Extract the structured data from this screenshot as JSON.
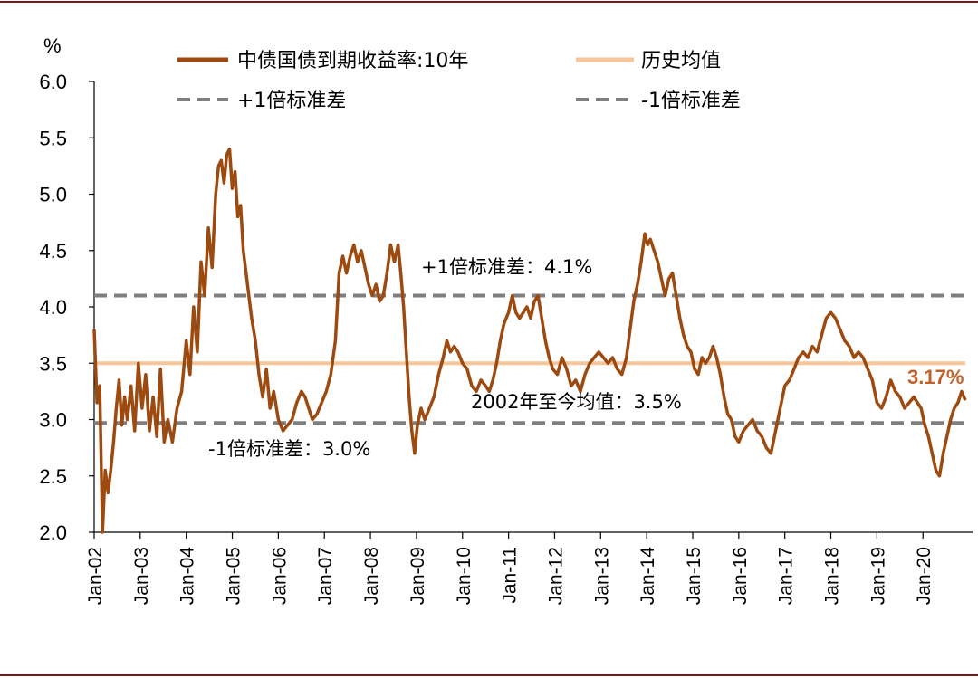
{
  "colors": {
    "frame": "#7a1a1a",
    "yield_line": "#9c4a10",
    "mean_line": "#f6c59a",
    "std_line": "#7f7f7f",
    "last_value": "#c0622a",
    "axis": "#000000"
  },
  "chart_data": {
    "type": "line",
    "ylabel": "%",
    "ylim": [
      2.0,
      6.0
    ],
    "yticks": [
      "2.0",
      "2.5",
      "3.0",
      "3.5",
      "4.0",
      "4.5",
      "5.0",
      "5.5",
      "6.0"
    ],
    "xlim": [
      2002.0,
      2020.92
    ],
    "xticks": [
      "Jan-02",
      "Jan-03",
      "Jan-04",
      "Jan-05",
      "Jan-06",
      "Jan-07",
      "Jan-08",
      "Jan-09",
      "Jan-10",
      "Jan-11",
      "Jan-12",
      "Jan-13",
      "Jan-14",
      "Jan-15",
      "Jan-16",
      "Jan-17",
      "Jan-18",
      "Jan-19",
      "Jan-20"
    ],
    "xtick_years": [
      2002,
      2003,
      2004,
      2005,
      2006,
      2007,
      2008,
      2009,
      2010,
      2011,
      2012,
      2013,
      2014,
      2015,
      2016,
      2017,
      2018,
      2019,
      2020
    ],
    "legend": {
      "position": "top",
      "entries": [
        "中债国债到期收益率:10年",
        "历史均值",
        "+1倍标准差",
        "-1倍标准差"
      ]
    },
    "series": [
      {
        "name": "中债国债到期收益率:10年",
        "style": "solid",
        "points": [
          [
            2002.0,
            3.8
          ],
          [
            2002.06,
            3.15
          ],
          [
            2002.12,
            3.3
          ],
          [
            2002.18,
            2.0
          ],
          [
            2002.24,
            2.55
          ],
          [
            2002.3,
            2.35
          ],
          [
            2002.36,
            2.55
          ],
          [
            2002.42,
            2.8
          ],
          [
            2002.48,
            3.1
          ],
          [
            2002.54,
            3.35
          ],
          [
            2002.6,
            2.95
          ],
          [
            2002.66,
            3.2
          ],
          [
            2002.72,
            3.0
          ],
          [
            2002.8,
            3.3
          ],
          [
            2002.88,
            2.9
          ],
          [
            2002.96,
            3.5
          ],
          [
            2003.04,
            3.1
          ],
          [
            2003.12,
            3.4
          ],
          [
            2003.2,
            2.9
          ],
          [
            2003.28,
            3.2
          ],
          [
            2003.36,
            2.85
          ],
          [
            2003.44,
            3.45
          ],
          [
            2003.52,
            2.8
          ],
          [
            2003.6,
            3.0
          ],
          [
            2003.7,
            2.8
          ],
          [
            2003.8,
            3.1
          ],
          [
            2003.9,
            3.25
          ],
          [
            2004.0,
            3.7
          ],
          [
            2004.08,
            3.4
          ],
          [
            2004.16,
            4.0
          ],
          [
            2004.24,
            3.6
          ],
          [
            2004.32,
            4.4
          ],
          [
            2004.4,
            4.1
          ],
          [
            2004.48,
            4.7
          ],
          [
            2004.56,
            4.35
          ],
          [
            2004.64,
            5.0
          ],
          [
            2004.7,
            5.25
          ],
          [
            2004.76,
            5.3
          ],
          [
            2004.82,
            5.1
          ],
          [
            2004.88,
            5.35
          ],
          [
            2004.94,
            5.4
          ],
          [
            2005.0,
            5.05
          ],
          [
            2005.06,
            5.2
          ],
          [
            2005.12,
            4.8
          ],
          [
            2005.18,
            4.9
          ],
          [
            2005.24,
            4.5
          ],
          [
            2005.3,
            4.3
          ],
          [
            2005.36,
            4.1
          ],
          [
            2005.42,
            3.9
          ],
          [
            2005.5,
            3.7
          ],
          [
            2005.58,
            3.4
          ],
          [
            2005.66,
            3.2
          ],
          [
            2005.74,
            3.45
          ],
          [
            2005.82,
            3.1
          ],
          [
            2005.9,
            3.25
          ],
          [
            2006.0,
            3.0
          ],
          [
            2006.1,
            2.9
          ],
          [
            2006.2,
            2.95
          ],
          [
            2006.3,
            3.0
          ],
          [
            2006.4,
            3.15
          ],
          [
            2006.5,
            3.25
          ],
          [
            2006.58,
            3.2
          ],
          [
            2006.66,
            3.1
          ],
          [
            2006.74,
            3.0
          ],
          [
            2006.84,
            3.05
          ],
          [
            2006.94,
            3.15
          ],
          [
            2007.04,
            3.25
          ],
          [
            2007.14,
            3.4
          ],
          [
            2007.24,
            3.7
          ],
          [
            2007.32,
            4.3
          ],
          [
            2007.4,
            4.45
          ],
          [
            2007.48,
            4.3
          ],
          [
            2007.56,
            4.45
          ],
          [
            2007.64,
            4.55
          ],
          [
            2007.72,
            4.4
          ],
          [
            2007.8,
            4.5
          ],
          [
            2007.88,
            4.35
          ],
          [
            2007.96,
            4.2
          ],
          [
            2008.04,
            4.1
          ],
          [
            2008.12,
            4.2
          ],
          [
            2008.2,
            4.05
          ],
          [
            2008.28,
            4.1
          ],
          [
            2008.36,
            4.3
          ],
          [
            2008.44,
            4.55
          ],
          [
            2008.52,
            4.4
          ],
          [
            2008.6,
            4.55
          ],
          [
            2008.66,
            4.3
          ],
          [
            2008.72,
            4.0
          ],
          [
            2008.78,
            3.6
          ],
          [
            2008.84,
            3.2
          ],
          [
            2008.9,
            2.9
          ],
          [
            2008.96,
            2.7
          ],
          [
            2009.02,
            2.95
          ],
          [
            2009.1,
            3.1
          ],
          [
            2009.18,
            3.0
          ],
          [
            2009.28,
            3.1
          ],
          [
            2009.38,
            3.2
          ],
          [
            2009.48,
            3.4
          ],
          [
            2009.58,
            3.55
          ],
          [
            2009.66,
            3.7
          ],
          [
            2009.74,
            3.6
          ],
          [
            2009.82,
            3.65
          ],
          [
            2009.9,
            3.6
          ],
          [
            2010.0,
            3.5
          ],
          [
            2010.1,
            3.45
          ],
          [
            2010.2,
            3.3
          ],
          [
            2010.3,
            3.25
          ],
          [
            2010.4,
            3.35
          ],
          [
            2010.5,
            3.3
          ],
          [
            2010.58,
            3.25
          ],
          [
            2010.66,
            3.35
          ],
          [
            2010.74,
            3.5
          ],
          [
            2010.82,
            3.7
          ],
          [
            2010.9,
            3.85
          ],
          [
            2011.0,
            3.95
          ],
          [
            2011.08,
            4.1
          ],
          [
            2011.16,
            3.95
          ],
          [
            2011.24,
            3.9
          ],
          [
            2011.32,
            3.95
          ],
          [
            2011.4,
            4.0
          ],
          [
            2011.48,
            3.9
          ],
          [
            2011.56,
            4.05
          ],
          [
            2011.64,
            4.1
          ],
          [
            2011.72,
            3.9
          ],
          [
            2011.8,
            3.7
          ],
          [
            2011.88,
            3.55
          ],
          [
            2011.96,
            3.45
          ],
          [
            2012.06,
            3.4
          ],
          [
            2012.16,
            3.55
          ],
          [
            2012.26,
            3.45
          ],
          [
            2012.36,
            3.3
          ],
          [
            2012.46,
            3.35
          ],
          [
            2012.56,
            3.25
          ],
          [
            2012.66,
            3.4
          ],
          [
            2012.76,
            3.5
          ],
          [
            2012.86,
            3.55
          ],
          [
            2012.96,
            3.6
          ],
          [
            2013.06,
            3.55
          ],
          [
            2013.16,
            3.5
          ],
          [
            2013.26,
            3.55
          ],
          [
            2013.36,
            3.45
          ],
          [
            2013.46,
            3.4
          ],
          [
            2013.56,
            3.55
          ],
          [
            2013.64,
            3.8
          ],
          [
            2013.72,
            4.05
          ],
          [
            2013.8,
            4.2
          ],
          [
            2013.88,
            4.4
          ],
          [
            2013.96,
            4.65
          ],
          [
            2014.02,
            4.55
          ],
          [
            2014.08,
            4.6
          ],
          [
            2014.16,
            4.5
          ],
          [
            2014.24,
            4.4
          ],
          [
            2014.32,
            4.25
          ],
          [
            2014.4,
            4.1
          ],
          [
            2014.48,
            4.25
          ],
          [
            2014.56,
            4.3
          ],
          [
            2014.64,
            4.1
          ],
          [
            2014.72,
            3.9
          ],
          [
            2014.8,
            3.75
          ],
          [
            2014.88,
            3.65
          ],
          [
            2014.96,
            3.6
          ],
          [
            2015.04,
            3.45
          ],
          [
            2015.12,
            3.4
          ],
          [
            2015.2,
            3.55
          ],
          [
            2015.28,
            3.5
          ],
          [
            2015.36,
            3.55
          ],
          [
            2015.44,
            3.65
          ],
          [
            2015.52,
            3.55
          ],
          [
            2015.6,
            3.4
          ],
          [
            2015.68,
            3.2
          ],
          [
            2015.76,
            3.05
          ],
          [
            2015.84,
            3.0
          ],
          [
            2015.92,
            2.85
          ],
          [
            2016.0,
            2.8
          ],
          [
            2016.1,
            2.9
          ],
          [
            2016.2,
            2.95
          ],
          [
            2016.3,
            3.0
          ],
          [
            2016.4,
            2.9
          ],
          [
            2016.5,
            2.85
          ],
          [
            2016.6,
            2.75
          ],
          [
            2016.7,
            2.7
          ],
          [
            2016.8,
            2.9
          ],
          [
            2016.9,
            3.1
          ],
          [
            2017.0,
            3.3
          ],
          [
            2017.1,
            3.35
          ],
          [
            2017.2,
            3.45
          ],
          [
            2017.3,
            3.55
          ],
          [
            2017.4,
            3.6
          ],
          [
            2017.5,
            3.55
          ],
          [
            2017.6,
            3.65
          ],
          [
            2017.7,
            3.6
          ],
          [
            2017.8,
            3.75
          ],
          [
            2017.9,
            3.9
          ],
          [
            2018.0,
            3.95
          ],
          [
            2018.1,
            3.9
          ],
          [
            2018.2,
            3.8
          ],
          [
            2018.3,
            3.7
          ],
          [
            2018.4,
            3.65
          ],
          [
            2018.5,
            3.55
          ],
          [
            2018.6,
            3.6
          ],
          [
            2018.7,
            3.55
          ],
          [
            2018.8,
            3.45
          ],
          [
            2018.9,
            3.35
          ],
          [
            2019.0,
            3.15
          ],
          [
            2019.1,
            3.1
          ],
          [
            2019.2,
            3.2
          ],
          [
            2019.3,
            3.35
          ],
          [
            2019.4,
            3.25
          ],
          [
            2019.5,
            3.2
          ],
          [
            2019.6,
            3.1
          ],
          [
            2019.7,
            3.15
          ],
          [
            2019.8,
            3.2
          ],
          [
            2019.88,
            3.15
          ],
          [
            2019.96,
            3.1
          ],
          [
            2020.04,
            2.95
          ],
          [
            2020.12,
            2.85
          ],
          [
            2020.2,
            2.7
          ],
          [
            2020.28,
            2.55
          ],
          [
            2020.36,
            2.5
          ],
          [
            2020.44,
            2.7
          ],
          [
            2020.52,
            2.85
          ],
          [
            2020.6,
            3.0
          ],
          [
            2020.68,
            3.1
          ],
          [
            2020.76,
            3.15
          ],
          [
            2020.84,
            3.25
          ],
          [
            2020.92,
            3.17
          ]
        ]
      },
      {
        "name": "历史均值",
        "style": "solid",
        "value": 3.5
      },
      {
        "name": "+1倍标准差",
        "style": "dashed",
        "value": 4.1
      },
      {
        "name": "-1倍标准差",
        "style": "dashed",
        "value": 2.97
      }
    ],
    "annotations": {
      "plus_std": "+1倍标准差：4.1%",
      "minus_std": "-1倍标准差：3.0%",
      "mean": "2002年至今均值：3.5%",
      "last_value": "3.17%"
    },
    "grid": false
  }
}
